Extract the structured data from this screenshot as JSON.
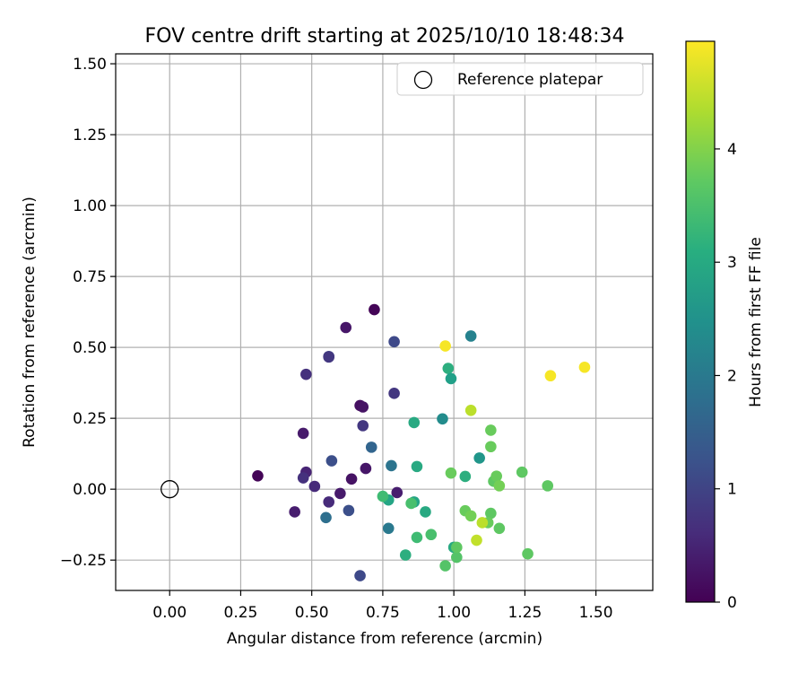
{
  "chart_data": {
    "type": "scatter",
    "title": "FOV centre drift starting at 2025/10/10 18:48:34",
    "xlabel": "Angular distance from reference (arcmin)",
    "ylabel": "Rotation from reference (arcmin)",
    "xlim": [
      -0.19,
      1.7
    ],
    "ylim": [
      -0.357,
      1.535
    ],
    "xticks": [
      0.0,
      0.25,
      0.5,
      0.75,
      1.0,
      1.25,
      1.5
    ],
    "xtick_labels": [
      "0.00",
      "0.25",
      "0.50",
      "0.75",
      "1.00",
      "1.25",
      "1.50"
    ],
    "yticks": [
      -0.25,
      0.0,
      0.25,
      0.5,
      0.75,
      1.0,
      1.25,
      1.5
    ],
    "ytick_labels": [
      "−0.25",
      "0.00",
      "0.25",
      "0.50",
      "0.75",
      "1.00",
      "1.25",
      "1.50"
    ],
    "grid": true,
    "legend": {
      "position": "top-right",
      "entries": [
        "Reference platepar"
      ]
    },
    "reference_point": {
      "x": 0.0,
      "y": 0.0,
      "label": "Reference platepar"
    },
    "colorbar": {
      "label": "Hours from first FF file",
      "min": 0,
      "max": 4.95,
      "ticks": [
        0,
        1,
        2,
        3,
        4
      ],
      "colormap": "viridis"
    },
    "points": [
      {
        "x": 0.31,
        "y": 0.047,
        "c": 0.05
      },
      {
        "x": 0.72,
        "y": 0.633,
        "c": 0.05
      },
      {
        "x": 0.62,
        "y": 0.57,
        "c": 0.3
      },
      {
        "x": 0.44,
        "y": -0.08,
        "c": 0.4
      },
      {
        "x": 0.48,
        "y": 0.06,
        "c": 0.5
      },
      {
        "x": 0.47,
        "y": 0.197,
        "c": 0.35
      },
      {
        "x": 0.67,
        "y": 0.295,
        "c": 0.2
      },
      {
        "x": 0.68,
        "y": 0.29,
        "c": 0.25
      },
      {
        "x": 0.6,
        "y": -0.015,
        "c": 0.35
      },
      {
        "x": 0.64,
        "y": 0.036,
        "c": 0.25
      },
      {
        "x": 0.69,
        "y": 0.073,
        "c": 0.3
      },
      {
        "x": 0.8,
        "y": -0.012,
        "c": 0.4
      },
      {
        "x": 0.48,
        "y": 0.405,
        "c": 0.7
      },
      {
        "x": 0.56,
        "y": 0.468,
        "c": 1.0
      },
      {
        "x": 0.56,
        "y": 0.466,
        "c": 0.8
      },
      {
        "x": 0.47,
        "y": 0.04,
        "c": 0.7
      },
      {
        "x": 0.51,
        "y": 0.01,
        "c": 0.6
      },
      {
        "x": 0.56,
        "y": -0.045,
        "c": 0.6
      },
      {
        "x": 0.68,
        "y": 0.224,
        "c": 0.8
      },
      {
        "x": 0.79,
        "y": 0.338,
        "c": 0.8
      },
      {
        "x": 0.79,
        "y": 0.52,
        "c": 1.1
      },
      {
        "x": 0.57,
        "y": 0.1,
        "c": 1.2
      },
      {
        "x": 0.63,
        "y": -0.075,
        "c": 1.2
      },
      {
        "x": 0.67,
        "y": -0.305,
        "c": 1.1
      },
      {
        "x": 0.71,
        "y": 0.148,
        "c": 1.6
      },
      {
        "x": 0.55,
        "y": -0.1,
        "c": 1.8
      },
      {
        "x": 0.78,
        "y": 0.083,
        "c": 1.9
      },
      {
        "x": 0.77,
        "y": -0.138,
        "c": 2.0
      },
      {
        "x": 1.06,
        "y": 0.54,
        "c": 2.2
      },
      {
        "x": 0.96,
        "y": 0.248,
        "c": 2.4
      },
      {
        "x": 1.09,
        "y": 0.11,
        "c": 2.6
      },
      {
        "x": 0.77,
        "y": -0.038,
        "c": 2.9
      },
      {
        "x": 0.86,
        "y": 0.235,
        "c": 3.0
      },
      {
        "x": 0.98,
        "y": 0.426,
        "c": 3.1
      },
      {
        "x": 0.99,
        "y": 0.39,
        "c": 2.8
      },
      {
        "x": 0.87,
        "y": 0.08,
        "c": 3.0
      },
      {
        "x": 0.86,
        "y": -0.045,
        "c": 2.9
      },
      {
        "x": 0.9,
        "y": -0.08,
        "c": 3.0
      },
      {
        "x": 0.83,
        "y": -0.232,
        "c": 3.1
      },
      {
        "x": 1.0,
        "y": -0.205,
        "c": 3.0
      },
      {
        "x": 1.04,
        "y": 0.045,
        "c": 3.1
      },
      {
        "x": 0.75,
        "y": -0.025,
        "c": 3.4
      },
      {
        "x": 0.85,
        "y": -0.05,
        "c": 3.5
      },
      {
        "x": 0.87,
        "y": -0.17,
        "c": 3.4
      },
      {
        "x": 0.92,
        "y": -0.16,
        "c": 3.5
      },
      {
        "x": 0.97,
        "y": -0.27,
        "c": 3.6
      },
      {
        "x": 1.01,
        "y": -0.24,
        "c": 3.6
      },
      {
        "x": 1.01,
        "y": -0.205,
        "c": 3.7
      },
      {
        "x": 0.99,
        "y": 0.057,
        "c": 3.8
      },
      {
        "x": 1.04,
        "y": -0.076,
        "c": 3.8
      },
      {
        "x": 1.06,
        "y": -0.094,
        "c": 3.9
      },
      {
        "x": 1.13,
        "y": 0.15,
        "c": 3.8
      },
      {
        "x": 1.13,
        "y": 0.208,
        "c": 3.8
      },
      {
        "x": 1.14,
        "y": 0.028,
        "c": 3.7
      },
      {
        "x": 1.15,
        "y": 0.046,
        "c": 3.8
      },
      {
        "x": 1.16,
        "y": 0.012,
        "c": 3.9
      },
      {
        "x": 1.13,
        "y": -0.085,
        "c": 3.7
      },
      {
        "x": 1.12,
        "y": -0.118,
        "c": 3.8
      },
      {
        "x": 1.16,
        "y": -0.138,
        "c": 3.7
      },
      {
        "x": 1.24,
        "y": 0.06,
        "c": 3.7
      },
      {
        "x": 1.26,
        "y": -0.228,
        "c": 3.7
      },
      {
        "x": 1.33,
        "y": 0.012,
        "c": 3.7
      },
      {
        "x": 1.06,
        "y": 0.278,
        "c": 4.45
      },
      {
        "x": 1.08,
        "y": -0.18,
        "c": 4.5
      },
      {
        "x": 1.1,
        "y": -0.118,
        "c": 4.45
      },
      {
        "x": 0.97,
        "y": 0.505,
        "c": 4.9
      },
      {
        "x": 1.34,
        "y": 0.4,
        "c": 4.9
      },
      {
        "x": 1.46,
        "y": 0.43,
        "c": 4.9
      }
    ]
  }
}
